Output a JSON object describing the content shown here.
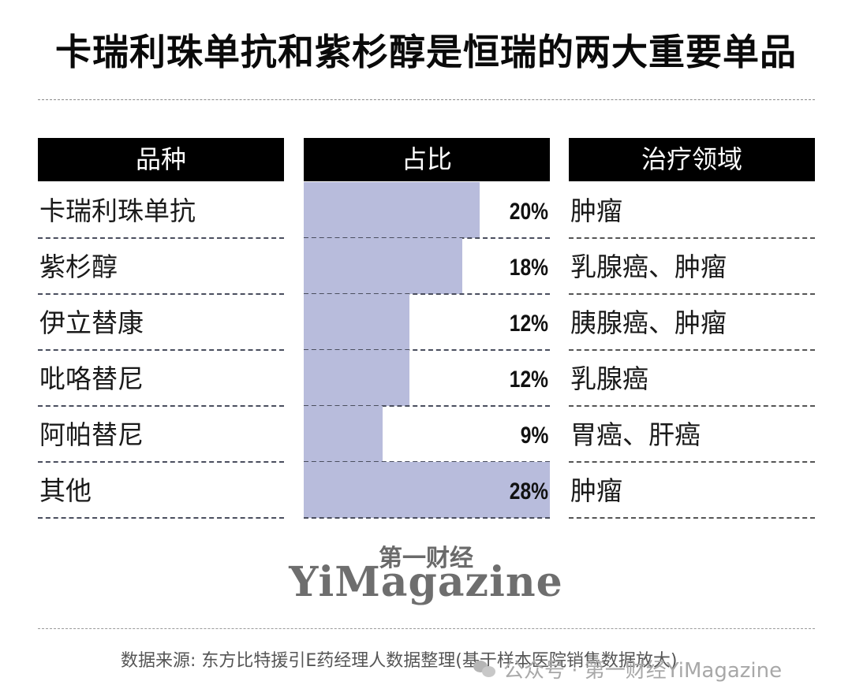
{
  "title": "卡瑞利珠单抗和紫杉醇是恒瑞的两大重要单品",
  "table": {
    "headers": [
      "品种",
      "占比",
      "治疗领域"
    ],
    "rows": [
      {
        "drug": "卡瑞利珠单抗",
        "share": 20,
        "share_label": "20%",
        "area": "肿瘤"
      },
      {
        "drug": "紫杉醇",
        "share": 18,
        "share_label": "18%",
        "area": "乳腺癌、肿瘤"
      },
      {
        "drug": "伊立替康",
        "share": 12,
        "share_label": "12%",
        "area": "胰腺癌、肿瘤"
      },
      {
        "drug": "吡咯替尼",
        "share": 12,
        "share_label": "12%",
        "area": "乳腺癌"
      },
      {
        "drug": "阿帕替尼",
        "share": 9,
        "share_label": "9%",
        "area": "胃癌、肝癌"
      },
      {
        "drug": "其他",
        "share": 28,
        "share_label": "28%",
        "area": "肿瘤"
      }
    ]
  },
  "colors": {
    "bar": "#b8bcdc",
    "header_bg": "#000000",
    "header_text": "#ffffff"
  },
  "logo": {
    "cn": "第一财经",
    "en": "YiMagazine"
  },
  "source": "数据来源: 东方比特援引E药经理人数据整理(基于样本医院销售数据放大)",
  "watermark": "公众号 · 第一财经YiMagazine",
  "chart_data": {
    "type": "bar",
    "orientation": "horizontal",
    "title": "卡瑞利珠单抗和紫杉醇是恒瑞的两大重要单品",
    "categories": [
      "卡瑞利珠单抗",
      "紫杉醇",
      "伊立替康",
      "吡咯替尼",
      "阿帕替尼",
      "其他"
    ],
    "values": [
      20,
      18,
      12,
      12,
      9,
      28
    ],
    "unit": "%",
    "xlabel": "占比",
    "ylabel": "品种",
    "extra_column": {
      "name": "治疗领域",
      "values": [
        "肿瘤",
        "乳腺癌、肿瘤",
        "胰腺癌、肿瘤",
        "乳腺癌",
        "胃癌、肝癌",
        "肿瘤"
      ]
    },
    "xlim": [
      0,
      28
    ],
    "grid": false,
    "legend": "none",
    "source": "数据来源: 东方比特援引E药经理人数据整理(基于样本医院销售数据放大)"
  }
}
